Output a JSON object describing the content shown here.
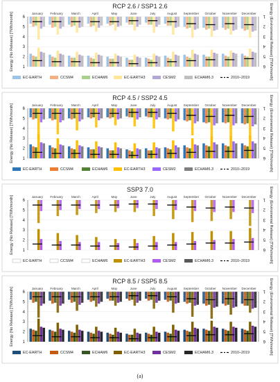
{
  "figure": {
    "caption": "(a)",
    "months": [
      "January",
      "February",
      "March",
      "April",
      "May",
      "June",
      "July",
      "August",
      "September",
      "October",
      "November",
      "December"
    ],
    "left_axis_label": "Energy (No Release) [TWh/month]",
    "right_axis_label": "Energy (Enviromental Release) [TWh/month]",
    "left_ticks": [
      "1",
      "2",
      "3",
      "4",
      "5",
      "6"
    ],
    "right_ticks": [
      "1",
      "2",
      "3",
      "4",
      "5",
      "6"
    ],
    "legend": [
      "EC-EARTH",
      "CCSM4",
      "ECHAM6",
      "EC-EARTH3",
      "CESM2",
      "ECHAM6.3",
      "2010–2019"
    ]
  },
  "chart_data": [
    {
      "type": "bar",
      "title": "RCP 2.6 / SSP1 2.6",
      "categories": [
        "January",
        "February",
        "March",
        "April",
        "May",
        "June",
        "July",
        "August",
        "September",
        "October",
        "November",
        "December"
      ],
      "ylim": [
        1,
        6
      ],
      "colors": [
        "#9dc3e6",
        "#f4b183",
        "#a9d18e",
        "#ffe699",
        "#b4a7d6",
        "#bfbfbf"
      ],
      "series": [
        {
          "name": "EC-EARTH",
          "no_release": [
            5.3,
            5.2,
            5.2,
            5.3,
            5.3,
            5.4,
            5.4,
            5.3,
            5.0,
            4.9,
            4.9,
            4.8
          ],
          "env_release": [
            2.3,
            2.2,
            2.1,
            2.1,
            2.0,
            1.9,
            1.9,
            2.1,
            2.2,
            2.2,
            2.3,
            2.3
          ]
        },
        {
          "name": "CCSM4",
          "no_release": [
            5.0,
            4.9,
            5.0,
            5.0,
            5.1,
            5.2,
            5.2,
            5.1,
            4.8,
            4.7,
            4.7,
            4.6
          ],
          "env_release": [
            2.1,
            2.0,
            1.9,
            1.9,
            1.8,
            1.7,
            1.8,
            1.9,
            2.0,
            2.0,
            2.1,
            2.1
          ]
        },
        {
          "name": "ECHAM6",
          "no_release": [
            5.1,
            5.0,
            5.1,
            5.1,
            5.2,
            5.2,
            5.2,
            5.1,
            4.9,
            4.8,
            4.8,
            4.7
          ],
          "env_release": [
            2.0,
            1.9,
            1.9,
            1.8,
            1.8,
            1.7,
            1.7,
            1.8,
            1.9,
            2.0,
            2.0,
            2.0
          ]
        },
        {
          "name": "EC-EARTH3",
          "no_release": [
            3.7,
            4.2,
            4.4,
            4.5,
            4.6,
            4.6,
            4.4,
            4.2,
            3.9,
            4.0,
            4.2,
            3.9
          ],
          "env_release": [
            2.9,
            2.6,
            2.5,
            2.4,
            2.3,
            2.2,
            2.3,
            2.5,
            2.7,
            2.7,
            2.6,
            2.8
          ]
        },
        {
          "name": "CESM2",
          "no_release": [
            4.8,
            4.8,
            4.9,
            4.9,
            5.0,
            5.0,
            5.0,
            4.9,
            4.7,
            4.6,
            4.6,
            4.5
          ],
          "env_release": [
            2.5,
            2.3,
            2.2,
            2.2,
            2.1,
            2.0,
            2.1,
            2.2,
            2.3,
            2.4,
            2.4,
            2.5
          ]
        },
        {
          "name": "ECHAM6.3",
          "no_release": [
            5.0,
            5.0,
            5.0,
            5.1,
            5.1,
            5.2,
            5.2,
            5.0,
            4.8,
            4.7,
            4.7,
            4.6
          ],
          "env_release": [
            2.4,
            2.2,
            2.1,
            2.1,
            2.0,
            1.9,
            2.0,
            2.1,
            2.2,
            2.3,
            2.3,
            2.4
          ]
        }
      ],
      "baseline_name": "2010–2019",
      "baseline_no_release": [
        5.5,
        5.5,
        5.5,
        5.5,
        5.5,
        5.6,
        5.6,
        5.5,
        5.3,
        5.2,
        5.3,
        5.2
      ],
      "baseline_env_release": [
        1.6,
        1.5,
        1.5,
        1.4,
        1.4,
        1.3,
        1.4,
        1.5,
        1.6,
        1.7,
        1.7,
        1.8
      ]
    },
    {
      "type": "bar",
      "title": "RCP 4.5 / SSP2 4.5",
      "categories": [
        "January",
        "February",
        "March",
        "April",
        "May",
        "June",
        "July",
        "August",
        "September",
        "October",
        "November",
        "December"
      ],
      "ylim": [
        1,
        6
      ],
      "colors": [
        "#2e75b6",
        "#ed7d31",
        "#548235",
        "#ffc000",
        "#9966ff",
        "#808080"
      ],
      "series": [
        {
          "name": "EC-EARTH",
          "no_release": [
            5.1,
            5.0,
            5.0,
            5.1,
            5.1,
            5.2,
            5.2,
            5.0,
            4.8,
            4.6,
            4.6,
            4.5
          ],
          "env_release": [
            2.4,
            2.3,
            2.2,
            2.1,
            2.0,
            1.9,
            2.0,
            2.1,
            2.3,
            2.5,
            2.5,
            2.5
          ]
        },
        {
          "name": "CCSM4",
          "no_release": [
            4.9,
            4.8,
            4.9,
            5.0,
            5.0,
            5.1,
            5.1,
            4.9,
            4.7,
            4.5,
            4.5,
            4.4
          ],
          "env_release": [
            2.2,
            2.1,
            2.0,
            1.9,
            1.8,
            1.8,
            1.8,
            2.0,
            2.1,
            2.3,
            2.3,
            2.3
          ]
        },
        {
          "name": "ECHAM6",
          "no_release": [
            5.0,
            4.9,
            5.0,
            5.1,
            5.1,
            5.1,
            5.1,
            5.0,
            4.8,
            4.6,
            4.6,
            4.5
          ],
          "env_release": [
            2.1,
            2.0,
            1.9,
            1.9,
            1.8,
            1.7,
            1.8,
            1.9,
            2.0,
            2.2,
            2.2,
            2.2
          ]
        },
        {
          "name": "EC-EARTH3",
          "no_release": [
            2.9,
            3.4,
            3.8,
            4.1,
            4.3,
            4.2,
            4.0,
            3.7,
            3.3,
            3.0,
            3.1,
            3.0
          ],
          "env_release": [
            3.4,
            3.0,
            2.8,
            2.7,
            2.6,
            2.5,
            2.6,
            2.8,
            3.0,
            3.2,
            3.2,
            3.3
          ]
        },
        {
          "name": "CESM2",
          "no_release": [
            4.6,
            4.6,
            4.7,
            4.8,
            4.9,
            4.9,
            4.9,
            4.7,
            4.5,
            4.3,
            4.3,
            4.2
          ],
          "env_release": [
            2.6,
            2.4,
            2.3,
            2.2,
            2.1,
            2.0,
            2.1,
            2.3,
            2.4,
            2.6,
            2.7,
            2.7
          ]
        },
        {
          "name": "ECHAM6.3",
          "no_release": [
            4.9,
            4.8,
            4.9,
            5.0,
            5.0,
            5.1,
            5.1,
            4.9,
            4.7,
            4.5,
            4.5,
            4.4
          ],
          "env_release": [
            2.5,
            2.3,
            2.2,
            2.1,
            2.0,
            1.9,
            2.0,
            2.1,
            2.3,
            2.4,
            2.5,
            2.5
          ]
        }
      ],
      "baseline_name": "2010–2019",
      "baseline_no_release": [
        5.5,
        5.5,
        5.5,
        5.5,
        5.5,
        5.6,
        5.6,
        5.5,
        5.3,
        5.2,
        5.3,
        5.2
      ],
      "baseline_env_release": [
        1.6,
        1.5,
        1.5,
        1.4,
        1.4,
        1.3,
        1.4,
        1.5,
        1.6,
        1.7,
        1.7,
        1.8
      ]
    },
    {
      "type": "bar",
      "title": "SSP3 7.0",
      "categories": [
        "January",
        "February",
        "March",
        "April",
        "May",
        "June",
        "July",
        "August",
        "September",
        "October",
        "November",
        "December"
      ],
      "ylim": [
        1,
        6
      ],
      "colors": [
        "#ffffff",
        "#ffffff",
        "#ffffff",
        "#bf9000",
        "#b05cf0",
        "#595959"
      ],
      "series": [
        {
          "name": "EC-EARTH",
          "no_release": [],
          "env_release": []
        },
        {
          "name": "CCSM4",
          "no_release": [],
          "env_release": []
        },
        {
          "name": "ECHAM6",
          "no_release": [],
          "env_release": []
        },
        {
          "name": "EC-EARTH3",
          "no_release": [
            3.7,
            4.4,
            4.5,
            4.7,
            4.8,
            4.8,
            4.4,
            4.1,
            3.8,
            3.9,
            4.1,
            3.4
          ],
          "env_release": [
            3.1,
            2.7,
            2.5,
            2.3,
            2.1,
            2.1,
            2.4,
            2.7,
            2.8,
            2.9,
            2.9,
            3.2
          ]
        },
        {
          "name": "CESM2",
          "no_release": [
            4.9,
            5.0,
            5.1,
            5.1,
            5.2,
            5.2,
            5.1,
            5.0,
            4.9,
            4.8,
            4.8,
            4.7
          ],
          "env_release": [
            2.1,
            1.9,
            1.8,
            1.8,
            1.7,
            1.7,
            1.8,
            1.8,
            1.9,
            2.0,
            2.1,
            2.2
          ]
        },
        {
          "name": "ECHAM6.3",
          "no_release": [],
          "env_release": []
        }
      ],
      "baseline_name": "2010–2019",
      "baseline_no_release": [
        5.5,
        5.5,
        5.5,
        5.5,
        5.5,
        5.6,
        5.6,
        5.5,
        5.3,
        5.2,
        5.3,
        5.2
      ],
      "baseline_env_release": [
        1.6,
        1.5,
        1.5,
        1.4,
        1.4,
        1.3,
        1.4,
        1.5,
        1.6,
        1.7,
        1.7,
        1.8
      ]
    },
    {
      "type": "bar",
      "title": "RCP 8.5 / SSP5 8.5",
      "categories": [
        "January",
        "February",
        "March",
        "April",
        "May",
        "June",
        "July",
        "August",
        "September",
        "October",
        "November",
        "December"
      ],
      "ylim": [
        1,
        6
      ],
      "colors": [
        "#1f4e79",
        "#c55a11",
        "#375623",
        "#7f6000",
        "#7030a0",
        "#262626"
      ],
      "series": [
        {
          "name": "EC-EARTH",
          "no_release": [
            5.2,
            5.1,
            5.2,
            5.2,
            5.3,
            5.3,
            5.3,
            5.2,
            5.0,
            4.8,
            4.8,
            4.8
          ],
          "env_release": [
            2.3,
            2.2,
            2.1,
            2.0,
            1.9,
            1.8,
            1.9,
            2.0,
            2.2,
            2.3,
            2.3,
            2.3
          ]
        },
        {
          "name": "CCSM4",
          "no_release": [
            4.9,
            4.8,
            4.9,
            5.0,
            5.1,
            5.1,
            5.1,
            5.0,
            4.8,
            4.6,
            4.6,
            4.6
          ],
          "env_release": [
            2.2,
            2.1,
            2.0,
            1.9,
            1.8,
            1.7,
            1.8,
            1.9,
            2.1,
            2.2,
            2.2,
            2.2
          ]
        },
        {
          "name": "ECHAM6",
          "no_release": [
            5.0,
            4.9,
            5.0,
            5.1,
            5.1,
            5.2,
            5.2,
            5.1,
            4.9,
            4.7,
            4.7,
            4.6
          ],
          "env_release": [
            2.1,
            2.0,
            1.9,
            1.8,
            1.7,
            1.7,
            1.7,
            1.8,
            2.0,
            2.1,
            2.1,
            2.1
          ]
        },
        {
          "name": "EC-EARTH3",
          "no_release": [
            3.4,
            3.9,
            4.1,
            4.5,
            4.6,
            4.6,
            4.3,
            3.9,
            3.5,
            3.3,
            3.7,
            3.9
          ],
          "env_release": [
            3.3,
            2.9,
            2.7,
            2.5,
            2.4,
            2.3,
            2.5,
            2.7,
            3.0,
            3.1,
            3.0,
            3.0
          ]
        },
        {
          "name": "CESM2",
          "no_release": [
            4.6,
            4.6,
            4.7,
            4.8,
            4.9,
            4.9,
            4.9,
            4.8,
            4.6,
            4.4,
            4.4,
            4.3
          ],
          "env_release": [
            2.5,
            2.3,
            2.2,
            2.1,
            2.0,
            1.9,
            2.0,
            2.2,
            2.4,
            2.5,
            2.5,
            2.6
          ]
        },
        {
          "name": "ECHAM6.3",
          "no_release": [
            4.8,
            4.8,
            4.9,
            5.0,
            5.0,
            5.1,
            5.1,
            4.9,
            4.7,
            4.5,
            4.5,
            4.4
          ],
          "env_release": [
            2.4,
            2.2,
            2.1,
            2.0,
            1.9,
            1.8,
            1.9,
            2.1,
            2.3,
            2.4,
            2.4,
            2.5
          ]
        }
      ],
      "baseline_name": "2010–2019",
      "baseline_no_release": [
        5.5,
        5.5,
        5.5,
        5.5,
        5.5,
        5.6,
        5.6,
        5.5,
        5.3,
        5.2,
        5.3,
        5.2
      ],
      "baseline_env_release": [
        1.6,
        1.5,
        1.5,
        1.4,
        1.4,
        1.3,
        1.4,
        1.5,
        1.6,
        1.7,
        1.7,
        1.8
      ]
    }
  ]
}
